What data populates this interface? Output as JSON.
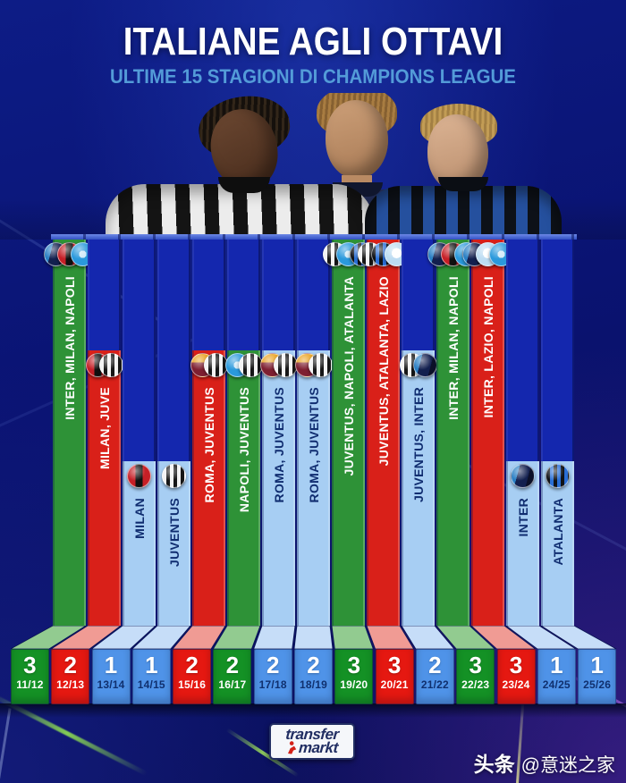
{
  "header": {
    "title": "ITALIANE AGLI OTTAVI",
    "subtitle": "ULTIME 15 STAGIONI DI CHAMPIONS LEAGUE",
    "title_color": "#ffffff",
    "subtitle_color": "#539bd8"
  },
  "chart_data": {
    "type": "bar",
    "title": "ITALIANE AGLI OTTAVI",
    "subtitle": "ULTIME 15 STAGIONI DI CHAMPIONS LEAGUE",
    "xlabel": "",
    "ylabel": "",
    "ylim": [
      0,
      3
    ],
    "grid": false,
    "legend": "none",
    "categories": [
      "11/12",
      "12/13",
      "13/14",
      "14/15",
      "15/16",
      "16/17",
      "17/18",
      "18/19",
      "19/20",
      "20/21",
      "21/22",
      "22/23",
      "23/24",
      "24/25",
      "25/26"
    ],
    "values": [
      3,
      2,
      1,
      1,
      2,
      2,
      2,
      2,
      3,
      3,
      2,
      3,
      3,
      1,
      1
    ],
    "bar_labels": [
      "INTER, MILAN, NAPOLI",
      "MILAN, JUVE",
      "MILAN",
      "JUVENTUS",
      "ROMA, JUVENTUS",
      "NAPOLI, JUVENTUS",
      "ROMA, JUVENTUS",
      "ROMA, JUVENTUS",
      "JUVENTUS, NAPOLI, ATALANTA",
      "JUVENTUS, ATALANTA, LAZIO",
      "JUVENTUS, INTER",
      "INTER, MILAN, NAPOLI",
      "INTER, LAZIO, NAPOLI",
      "INTER",
      "ATALANTA"
    ],
    "teams": [
      [
        "INTER",
        "MILAN",
        "NAPOLI"
      ],
      [
        "MILAN",
        "JUVE"
      ],
      [
        "MILAN"
      ],
      [
        "JUVENTUS"
      ],
      [
        "ROMA",
        "JUVENTUS"
      ],
      [
        "NAPOLI",
        "JUVENTUS"
      ],
      [
        "ROMA",
        "JUVENTUS"
      ],
      [
        "ROMA",
        "JUVENTUS"
      ],
      [
        "JUVENTUS",
        "NAPOLI",
        "ATALANTA"
      ],
      [
        "JUVENTUS",
        "ATALANTA",
        "LAZIO"
      ],
      [
        "JUVENTUS",
        "INTER"
      ],
      [
        "INTER",
        "MILAN",
        "NAPOLI"
      ],
      [
        "INTER",
        "LAZIO",
        "NAPOLI"
      ],
      [
        "INTER"
      ],
      [
        "ATALANTA"
      ]
    ],
    "bar_colors": [
      "green",
      "red",
      "blue",
      "blue",
      "red",
      "green",
      "blue",
      "blue",
      "green",
      "red",
      "blue",
      "green",
      "red",
      "blue",
      "blue"
    ],
    "palette": {
      "green": {
        "bar": "#2e9237",
        "top": "#92cb90",
        "front": "#149125",
        "label": "#ffffff",
        "num": "#ffffff",
        "season": "#ffffff"
      },
      "red": {
        "bar": "#d92019",
        "top": "#f09b94",
        "front": "#e51811",
        "label": "#ffffff",
        "num": "#ffffff",
        "season": "#ffffff"
      },
      "blue": {
        "bar": "#a7cef3",
        "top": "#c6ddf8",
        "front": "#4f93e8",
        "label": "#102d70",
        "num": "#ffffff",
        "season": "#10306e"
      }
    },
    "track_color": "#1427ae",
    "crests": {
      "INTER": "linear-gradient(105deg,#2a7fc4 0 30%,#13204f 30% 70%,#0b1028 70%)",
      "MILAN": "linear-gradient(90deg,#c61f26 0 34%,#101010 34% 66%,#c61f26 66%)",
      "NAPOLI": "radial-gradient(circle at 50% 50%,#cfe9f7 0 24%,#2a99dc 24% 100%)",
      "JUVE": "repeating-linear-gradient(90deg,#f2f2f2 0 4px,#161616 4px 8px)",
      "JUVENTUS": "repeating-linear-gradient(90deg,#f2f2f2 0 4px,#161616 4px 8px)",
      "ROMA": "linear-gradient(180deg,#e9a11e 0 38%,#7e1f31 38%)",
      "ATALANTA": "repeating-linear-gradient(90deg,#101216 0 4px,#2a6fd6 4px 8px)",
      "LAZIO": "radial-gradient(circle at 50% 45%,#ffffff 0 30%,#bcdcf2 30% 100%)"
    }
  },
  "footer": {
    "brand_line1": "transfer",
    "brand_line2": "markt",
    "watermark_prefix": "头条",
    "watermark_handle": "@意迷之家"
  }
}
